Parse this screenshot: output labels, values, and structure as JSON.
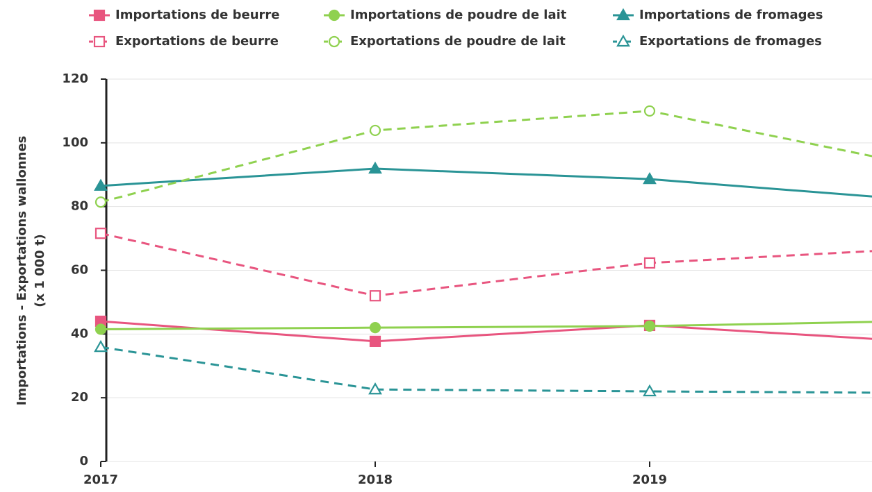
{
  "chart_data": {
    "type": "line",
    "ylabel": [
      "Importations - Exportations wallonnes",
      "(x 1 000 t)"
    ],
    "categories": [
      "2017",
      "2018",
      "2019",
      null
    ],
    "ylim": [
      0,
      120
    ],
    "yticks": [
      0,
      20,
      40,
      60,
      80,
      100,
      120
    ],
    "grid": true,
    "series": [
      {
        "name": "Importations de beurre",
        "color": "#e8557f",
        "marker": "square",
        "dashed": false,
        "values": [
          44,
          37.7,
          42.7,
          37.5
        ]
      },
      {
        "name": "Importations de poudre de lait",
        "color": "#8fd14f",
        "marker": "circle",
        "dashed": false,
        "values": [
          41.5,
          42,
          42.5,
          44.1
        ]
      },
      {
        "name": "Importations de fromages",
        "color": "#2a9496",
        "marker": "triangle",
        "dashed": false,
        "values": [
          86.5,
          91.9,
          88.6,
          81.9
        ]
      },
      {
        "name": "Exportations de beurre",
        "color": "#e8557f",
        "marker": "square",
        "dashed": true,
        "values": [
          71.6,
          52,
          62.3,
          66.9
        ]
      },
      {
        "name": "Exportations de poudre de lait",
        "color": "#8fd14f",
        "marker": "circle",
        "dashed": true,
        "values": [
          81.4,
          103.9,
          110,
          92.5
        ]
      },
      {
        "name": "Exportations de fromages",
        "color": "#2a9496",
        "marker": "triangle",
        "dashed": true,
        "values": [
          35.9,
          22.6,
          22,
          21.5
        ]
      }
    ]
  }
}
